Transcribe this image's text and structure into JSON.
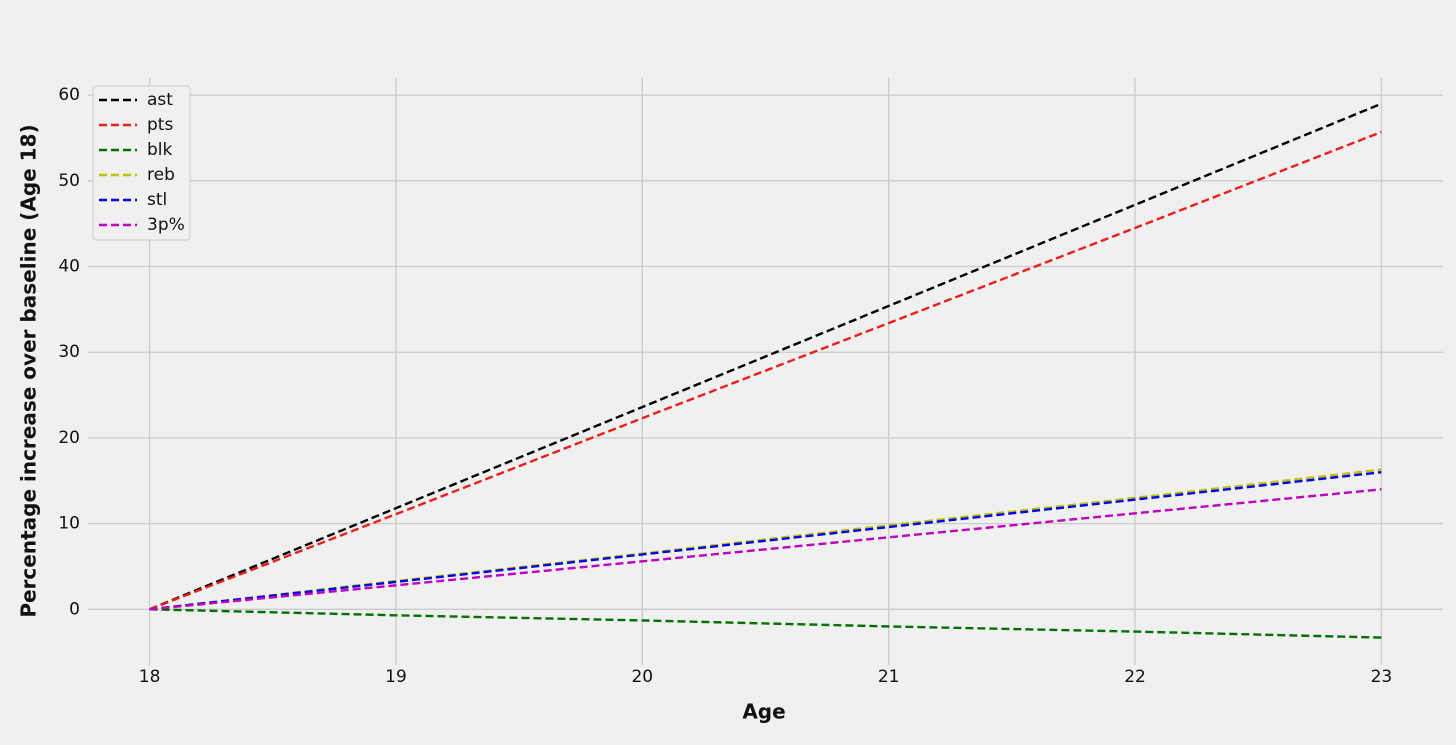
{
  "chart_data": {
    "type": "line",
    "x_label": "Age",
    "y_label": "Percentage increase over baseline (Age 18)",
    "x": [
      18,
      19,
      20,
      21,
      22,
      23
    ],
    "series": [
      {
        "name": "ast",
        "color": "#000000",
        "values": [
          0,
          11.8,
          23.6,
          35.4,
          47.2,
          59.0
        ]
      },
      {
        "name": "pts",
        "color": "#e8201c",
        "values": [
          0,
          11.1,
          22.3,
          33.4,
          44.5,
          55.7
        ]
      },
      {
        "name": "blk",
        "color": "#007000",
        "values": [
          0,
          -0.7,
          -1.3,
          -2.0,
          -2.6,
          -3.3
        ]
      },
      {
        "name": "reb",
        "color": "#bfbf00",
        "values": [
          0,
          3.3,
          6.5,
          9.8,
          13.0,
          16.3
        ]
      },
      {
        "name": "stl",
        "color": "#0000ee",
        "values": [
          0,
          3.2,
          6.4,
          9.6,
          12.8,
          16.0
        ]
      },
      {
        "name": "3p%",
        "color": "#bf00bf",
        "values": [
          0,
          2.8,
          5.6,
          8.4,
          11.2,
          14.0
        ]
      }
    ],
    "xlim": [
      17.75,
      23.25
    ],
    "xticks": [
      18,
      19,
      20,
      21,
      22,
      23
    ],
    "ylim": [
      -6.5,
      62
    ],
    "yticks": [
      0,
      10,
      20,
      30,
      40,
      50,
      60
    ],
    "grid": true,
    "legend": "upper-left"
  }
}
